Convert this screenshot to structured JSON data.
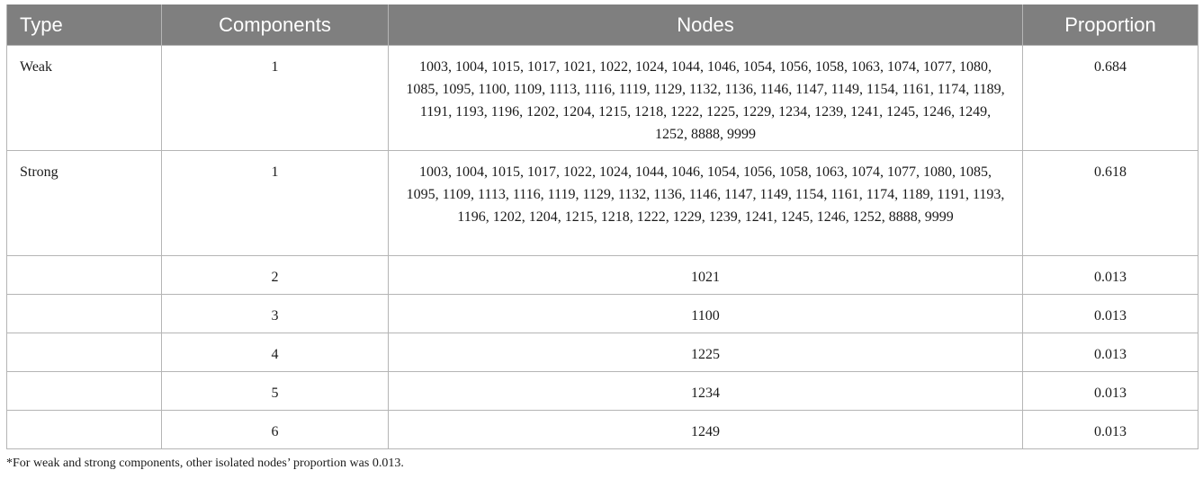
{
  "headers": {
    "type": "Type",
    "components": "Components",
    "nodes": "Nodes",
    "proportion": "Proportion"
  },
  "rows": [
    {
      "type": "Weak",
      "components": "1",
      "nodes": "1003, 1004, 1015, 1017, 1021, 1022, 1024, 1044, 1046, 1054, 1056, 1058, 1063, 1074, 1077, 1080, 1085, 1095, 1100, 1109, 1113, 1116, 1119, 1129, 1132, 1136, 1146, 1147, 1149, 1154, 1161, 1174, 1189, 1191, 1193, 1196, 1202, 1204, 1215, 1218, 1222, 1225, 1229, 1234, 1239, 1241, 1245, 1246, 1249, 1252, 8888, 9999",
      "proportion": "0.684"
    },
    {
      "type": "Strong",
      "components": "1",
      "nodes": "1003, 1004, 1015, 1017, 1022, 1024, 1044, 1046, 1054, 1056, 1058, 1063, 1074, 1077, 1080, 1085, 1095, 1109, 1113, 1116, 1119, 1129, 1132, 1136, 1146, 1147, 1149, 1154, 1161, 1174, 1189, 1191, 1193, 1196, 1202, 1204, 1215, 1218, 1222, 1229, 1239, 1241, 1245, 1246, 1252, 8888, 9999",
      "proportion": "0.618"
    },
    {
      "type": "",
      "components": "2",
      "nodes": "1021",
      "proportion": "0.013"
    },
    {
      "type": "",
      "components": "3",
      "nodes": "1100",
      "proportion": "0.013"
    },
    {
      "type": "",
      "components": "4",
      "nodes": "1225",
      "proportion": "0.013"
    },
    {
      "type": "",
      "components": "5",
      "nodes": "1234",
      "proportion": "0.013"
    },
    {
      "type": "",
      "components": "6",
      "nodes": "1249",
      "proportion": "0.013"
    }
  ],
  "footnote": "*For weak and strong components, other isolated nodes’ proportion was 0.013."
}
